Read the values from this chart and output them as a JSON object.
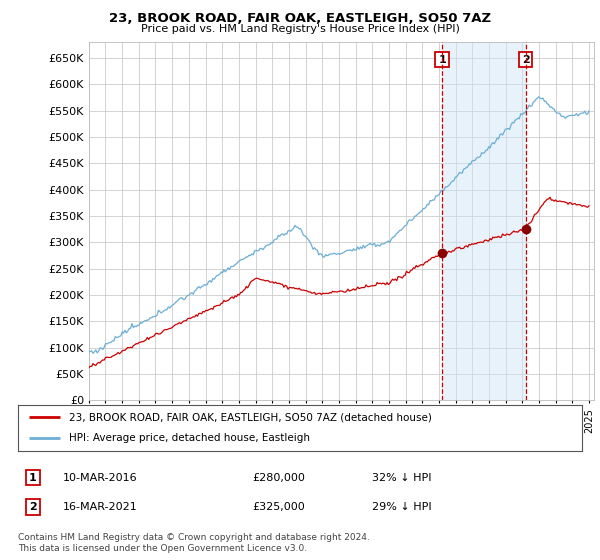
{
  "title": "23, BROOK ROAD, FAIR OAK, EASTLEIGH, SO50 7AZ",
  "subtitle": "Price paid vs. HM Land Registry's House Price Index (HPI)",
  "ylim": [
    0,
    680000
  ],
  "yticks": [
    0,
    50000,
    100000,
    150000,
    200000,
    250000,
    300000,
    350000,
    400000,
    450000,
    500000,
    550000,
    600000,
    650000
  ],
  "xlim_start": 1995.0,
  "xlim_end": 2025.3,
  "sale1_x": 2016.19,
  "sale1_y": 280000,
  "sale2_x": 2021.21,
  "sale2_y": 325000,
  "vline_color": "#cc0000",
  "sale_marker_color": "#8b0000",
  "sale_marker_size": 7,
  "hpi_color": "#6baed6",
  "sold_color": "#cc0000",
  "fill_color": "#ddeeff",
  "fill_alpha": 0.5,
  "legend1": "23, BROOK ROAD, FAIR OAK, EASTLEIGH, SO50 7AZ (detached house)",
  "legend2": "HPI: Average price, detached house, Eastleigh",
  "annotation1_date": "10-MAR-2016",
  "annotation1_price": "£280,000",
  "annotation1_hpi": "32% ↓ HPI",
  "annotation2_date": "16-MAR-2021",
  "annotation2_price": "£325,000",
  "annotation2_hpi": "29% ↓ HPI",
  "footer": "Contains HM Land Registry data © Crown copyright and database right 2024.\nThis data is licensed under the Open Government Licence v3.0.",
  "background_color": "#ffffff",
  "grid_color": "#cccccc"
}
